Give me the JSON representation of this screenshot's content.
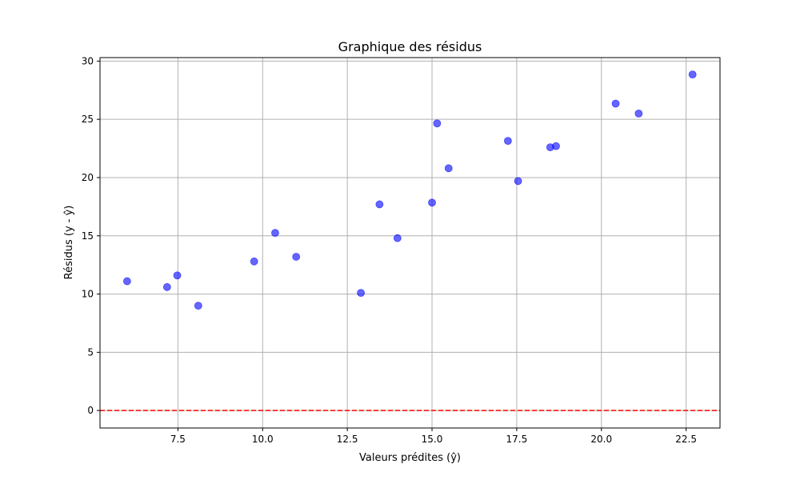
{
  "chart_data": {
    "type": "scatter",
    "title": "Graphique des résidus",
    "xlabel": "Valeurs prédites (ŷ)",
    "ylabel": "Résidus (y - ŷ)",
    "xlim": [
      5.2,
      23.5
    ],
    "ylim": [
      -1.5,
      30.3
    ],
    "xticks": [
      7.5,
      10.0,
      12.5,
      15.0,
      17.5,
      20.0,
      22.5
    ],
    "xtick_labels": [
      "7.5",
      "10.0",
      "12.5",
      "15.0",
      "17.5",
      "20.0",
      "22.5"
    ],
    "yticks": [
      0,
      5,
      10,
      15,
      20,
      25,
      30
    ],
    "ytick_labels": [
      "0",
      "5",
      "10",
      "15",
      "20",
      "25",
      "30"
    ],
    "grid": true,
    "reference_line": {
      "y": 0,
      "color": "#ff0000",
      "style": "dashed"
    },
    "marker_color": "#0000ff",
    "marker_alpha": 0.6,
    "points": [
      {
        "x": 6.0,
        "y": 11.1
      },
      {
        "x": 7.18,
        "y": 10.6
      },
      {
        "x": 7.48,
        "y": 11.6
      },
      {
        "x": 8.1,
        "y": 9.0
      },
      {
        "x": 9.75,
        "y": 12.8
      },
      {
        "x": 10.37,
        "y": 15.25
      },
      {
        "x": 10.99,
        "y": 13.2
      },
      {
        "x": 12.9,
        "y": 10.1
      },
      {
        "x": 13.45,
        "y": 17.7
      },
      {
        "x": 13.98,
        "y": 14.8
      },
      {
        "x": 15.0,
        "y": 17.85
      },
      {
        "x": 15.15,
        "y": 24.65
      },
      {
        "x": 15.49,
        "y": 20.8
      },
      {
        "x": 17.24,
        "y": 23.15
      },
      {
        "x": 17.54,
        "y": 19.7
      },
      {
        "x": 18.49,
        "y": 22.6
      },
      {
        "x": 18.66,
        "y": 22.7
      },
      {
        "x": 20.42,
        "y": 26.35
      },
      {
        "x": 21.1,
        "y": 25.5
      },
      {
        "x": 22.69,
        "y": 28.85
      }
    ]
  }
}
